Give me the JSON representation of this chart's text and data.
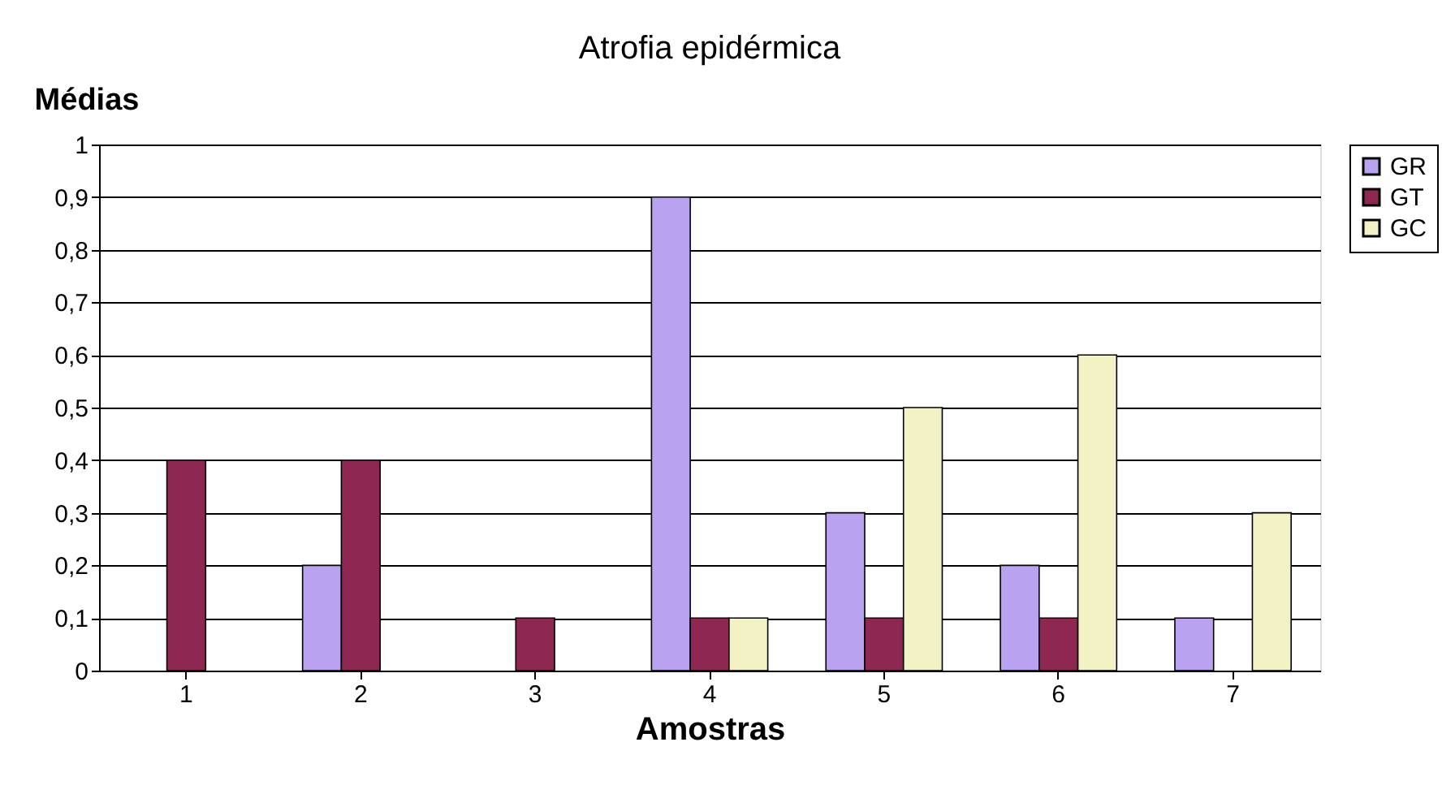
{
  "chart_data": {
    "type": "bar",
    "title": "Atrofia epidérmica",
    "xlabel": "Amostras",
    "ylabel": "Médias",
    "categories": [
      "1",
      "2",
      "3",
      "4",
      "5",
      "6",
      "7"
    ],
    "series": [
      {
        "name": "GR",
        "color": "#b9a3f0",
        "values": [
          0,
          0.2,
          0,
          0.9,
          0.3,
          0.2,
          0.1
        ]
      },
      {
        "name": "GT",
        "color": "#8e2752",
        "values": [
          0.4,
          0.4,
          0.1,
          0.1,
          0.1,
          0.1,
          0
        ]
      },
      {
        "name": "GC",
        "color": "#f2f2c4",
        "values": [
          0,
          0,
          0,
          0.1,
          0.5,
          0.6,
          0.3
        ]
      }
    ],
    "ylim": [
      0,
      1
    ],
    "yticks": [
      0,
      {
        "value": 0.1,
        "label": "0,1"
      },
      {
        "value": 0.2,
        "label": "0,2"
      },
      {
        "value": 0.3,
        "label": "0,3"
      },
      {
        "value": 0.4,
        "label": "0,4"
      },
      {
        "value": 0.5,
        "label": "0,5"
      },
      {
        "value": 0.6,
        "label": "0,6"
      },
      {
        "value": 0.7,
        "label": "0,7"
      },
      {
        "value": 0.8,
        "label": "0,8"
      },
      {
        "value": 0.9,
        "label": "0,9"
      },
      1
    ],
    "grid": "y",
    "legend": "right"
  }
}
